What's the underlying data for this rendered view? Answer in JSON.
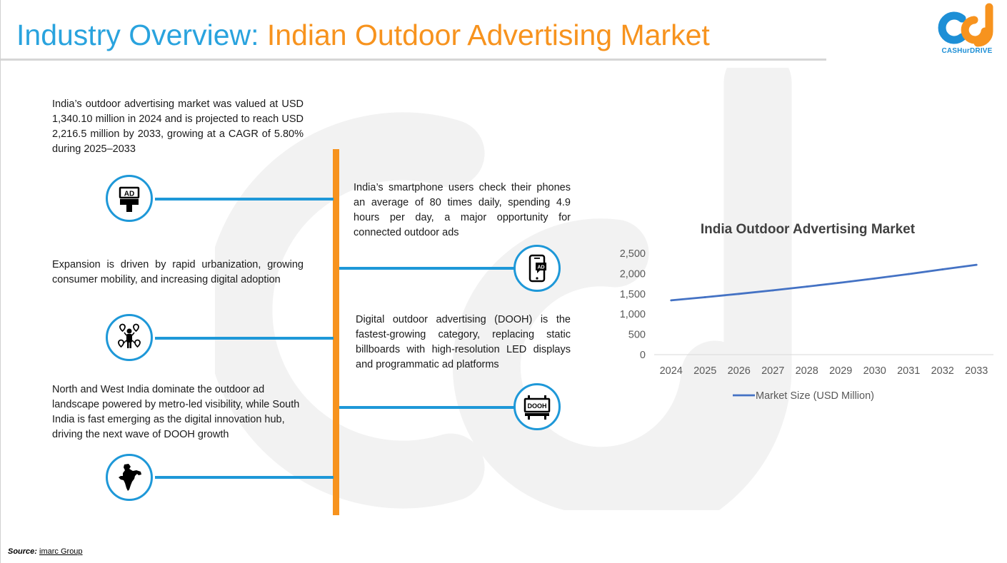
{
  "header": {
    "title_part1": "Industry Overview: ",
    "title_part2": "Indian Outdoor Advertising Market",
    "logo_text": "CASHurDRIVE"
  },
  "colors": {
    "blue": "#29a3de",
    "orange": "#f7931e",
    "connector": "#1e98d8",
    "series": "#4472c4"
  },
  "left_items": [
    {
      "text": "India’s outdoor advertising market was valued at USD 1,340.10 million in 2024 and is projected to reach USD 2,216.5 million by 2033, growing at a CAGR of 5.80% during 2025–2033",
      "icon": "billboard-ad-icon"
    },
    {
      "text": "Expansion is driven by rapid urbanization, growing consumer mobility, and increasing digital adoption",
      "icon": "urban-mobility-icon"
    },
    {
      "text": "North and West India dominate the outdoor ad landscape powered by metro-led visibility, while South India is fast emerging as the digital innovation hub, driving the next wave of DOOH growth",
      "icon": "india-map-icon"
    }
  ],
  "right_items": [
    {
      "text": "India’s smartphone users check their phones an average of 80 times daily, spending 4.9 hours per day, a major opportunity for connected outdoor ads",
      "icon": "smartphone-ad-icon"
    },
    {
      "text": "Digital outdoor advertising (DOOH) is the fastest-growing category, replacing static billboards with high-resolution LED displays and programmatic ad platforms",
      "icon": "dooh-screen-icon"
    }
  ],
  "icon_labels": {
    "ad": "AD",
    "dooh": "DOOH"
  },
  "chart_data": {
    "type": "line",
    "title": "India Outdoor Advertising Market",
    "x": [
      "2024",
      "2025",
      "2026",
      "2027",
      "2028",
      "2029",
      "2030",
      "2031",
      "2032",
      "2033"
    ],
    "series": [
      {
        "name": "Market Size (USD Million)",
        "values": [
          1340,
          1418,
          1500,
          1587,
          1679,
          1776,
          1879,
          1988,
          2103,
          2216.5
        ]
      }
    ],
    "yticks": [
      "0",
      "500",
      "1,000",
      "1,500",
      "2,000",
      "2,500"
    ],
    "ylim": [
      0,
      2500
    ],
    "grid": false,
    "legend": "bottom"
  },
  "source": {
    "label": "Source:",
    "value": "imarc Group"
  }
}
